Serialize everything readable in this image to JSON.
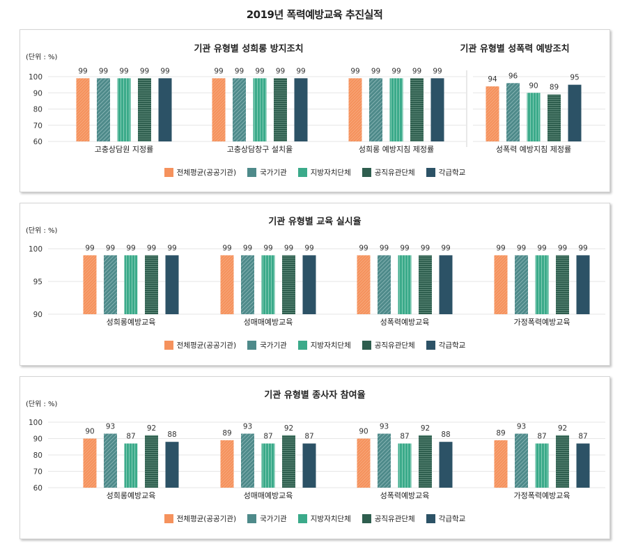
{
  "page_title": "2019년 폭력예방교육 추진실적",
  "colors": [
    "#F5925D",
    "#4E8A8A",
    "#3BAA8A",
    "#2E5E4E",
    "#2C5266"
  ],
  "legend": [
    "전체평균(공공기관)",
    "국가기관",
    "지방자치단체",
    "공직유관단체",
    "각급학교"
  ],
  "unit_label": "(단위 : %)",
  "chart_data": [
    {
      "type": "bar",
      "title": "기관 유형별 성희롱 방지조치",
      "categories": [
        "고충상담원 지정률",
        "고충상담창구 설치율",
        "성희롱 예방지침 제정률"
      ],
      "series": [
        {
          "name": "전체평균(공공기관)",
          "values": [
            99,
            99,
            99
          ]
        },
        {
          "name": "국가기관",
          "values": [
            99,
            99,
            99
          ]
        },
        {
          "name": "지방자치단체",
          "values": [
            99,
            99,
            99
          ]
        },
        {
          "name": "공직유관단체",
          "values": [
            99,
            99,
            99
          ]
        },
        {
          "name": "각급학교",
          "values": [
            99,
            99,
            99
          ]
        }
      ],
      "ylim": [
        60,
        100
      ],
      "yticks": [
        60,
        70,
        80,
        90,
        100
      ]
    },
    {
      "type": "bar",
      "title": "기관 유형별 성폭력 예방조치",
      "categories": [
        "성폭력 예방지침 제정률"
      ],
      "series": [
        {
          "name": "전체평균(공공기관)",
          "values": [
            94
          ]
        },
        {
          "name": "국가기관",
          "values": [
            96
          ]
        },
        {
          "name": "지방자치단체",
          "values": [
            90
          ]
        },
        {
          "name": "공직유관단체",
          "values": [
            89
          ]
        },
        {
          "name": "각급학교",
          "values": [
            95
          ]
        }
      ],
      "ylim": [
        60,
        100
      ],
      "yticks": [
        60,
        70,
        80,
        90,
        100
      ]
    },
    {
      "type": "bar",
      "title": "기관 유형별 교육 실시율",
      "categories": [
        "성희롱예방교육",
        "성매매예방교육",
        "성폭력예방교육",
        "가정폭력예방교육"
      ],
      "series": [
        {
          "name": "전체평균(공공기관)",
          "values": [
            99,
            99,
            99,
            99
          ]
        },
        {
          "name": "국가기관",
          "values": [
            99,
            99,
            99,
            99
          ]
        },
        {
          "name": "지방자치단체",
          "values": [
            99,
            99,
            99,
            99
          ]
        },
        {
          "name": "공직유관단체",
          "values": [
            99,
            99,
            99,
            99
          ]
        },
        {
          "name": "각급학교",
          "values": [
            99,
            99,
            99,
            99
          ]
        }
      ],
      "ylim": [
        90,
        100
      ],
      "yticks": [
        90,
        95,
        100
      ]
    },
    {
      "type": "bar",
      "title": "기관 유형별 종사자 참여율",
      "categories": [
        "성희롱예방교육",
        "성매매예방교육",
        "성폭력예방교육",
        "가정폭력예방교육"
      ],
      "series": [
        {
          "name": "전체평균(공공기관)",
          "values": [
            90,
            89,
            90,
            89
          ]
        },
        {
          "name": "국가기관",
          "values": [
            93,
            93,
            93,
            93
          ]
        },
        {
          "name": "지방자치단체",
          "values": [
            87,
            87,
            87,
            87
          ]
        },
        {
          "name": "공직유관단체",
          "values": [
            92,
            92,
            92,
            92
          ]
        },
        {
          "name": "각급학교",
          "values": [
            88,
            87,
            88,
            87
          ]
        }
      ],
      "ylim": [
        60,
        100
      ],
      "yticks": [
        60,
        70,
        80,
        90,
        100
      ]
    }
  ]
}
